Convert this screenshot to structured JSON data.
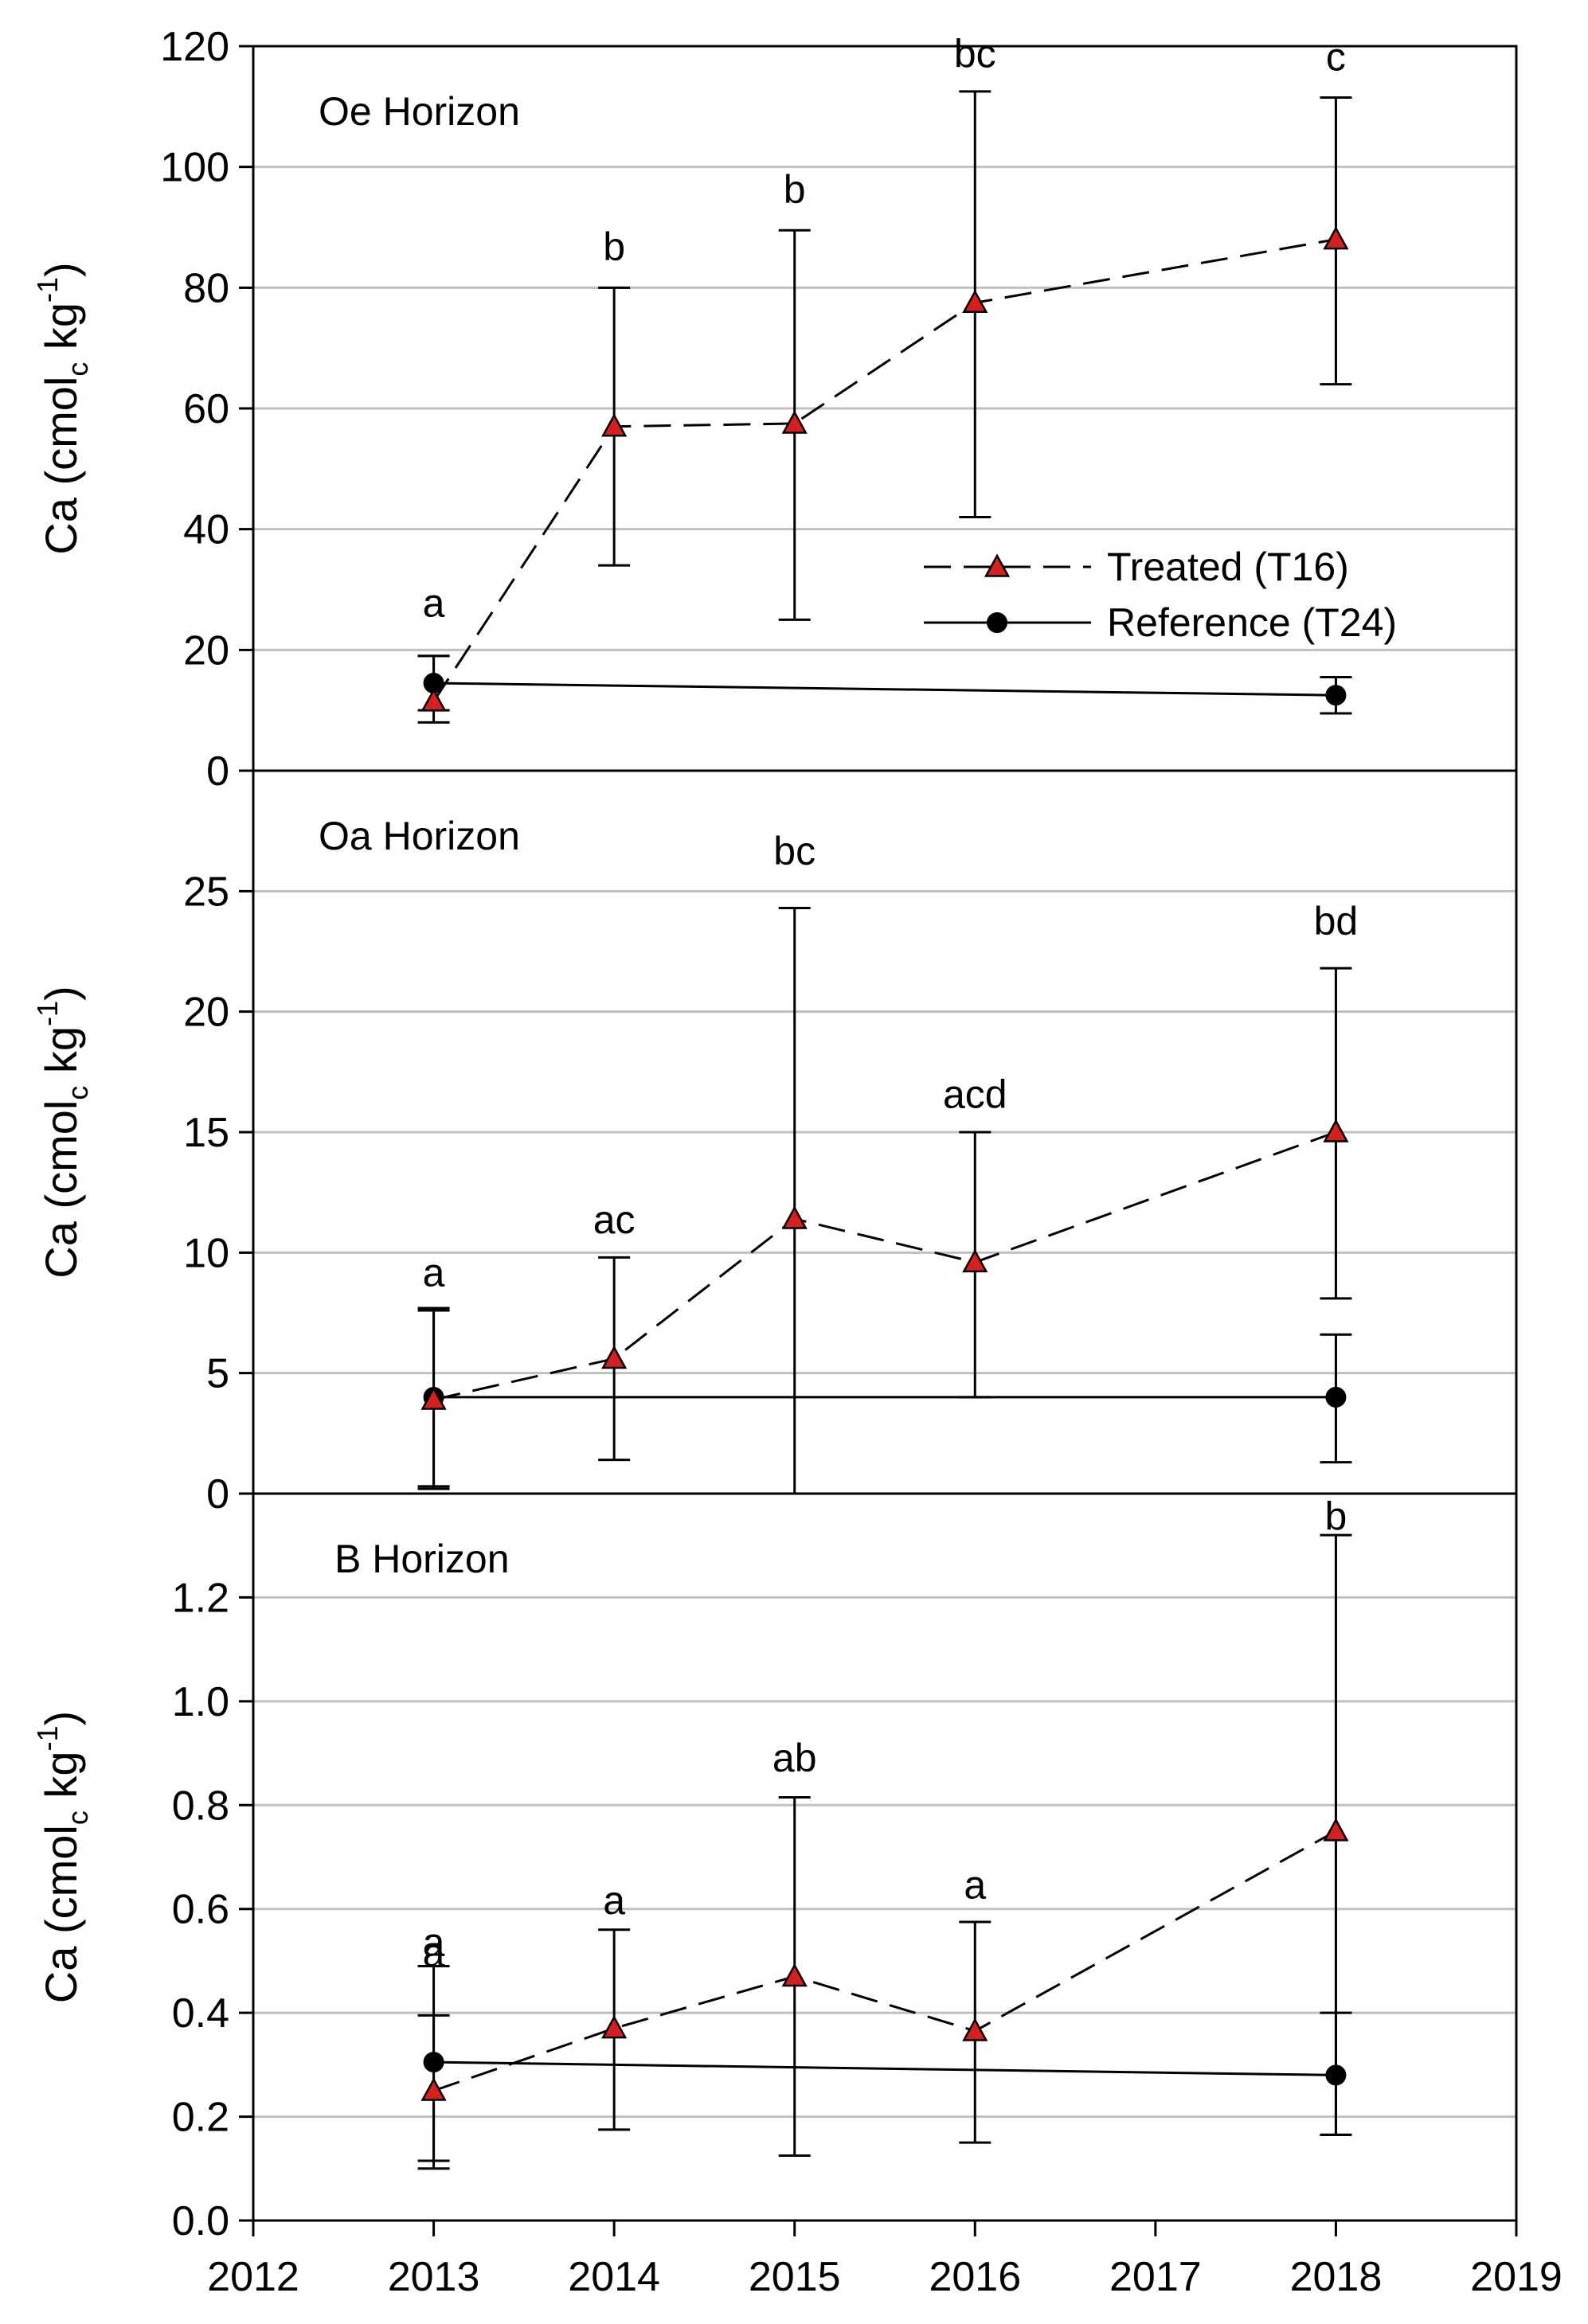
{
  "chart_data": [
    {
      "type": "line",
      "panel_label": "Oe Horizon",
      "y_axis_title": {
        "main": "Ca (cmol",
        "subscript": "c",
        "mid": " kg",
        "superscript": "-1",
        "end": ")"
      },
      "ylim": [
        0,
        120
      ],
      "y_ticks": [
        0,
        20,
        40,
        60,
        80,
        100,
        120
      ],
      "y_tick_labels": [
        "0",
        "20",
        "40",
        "60",
        "80",
        "100",
        "120"
      ],
      "grid": true,
      "series": [
        {
          "name": "Treated (T16)",
          "marker": "triangle",
          "line_style": "dashed",
          "color": "#d42020",
          "x": [
            2013,
            2014,
            2015,
            2016,
            2018
          ],
          "values": [
            11.5,
            57,
            57.5,
            77.5,
            88
          ],
          "err_high": [
            19,
            80,
            89.5,
            112.5,
            111.5
          ],
          "err_low": [
            8,
            34,
            25,
            42,
            64
          ]
        },
        {
          "name": "Reference (T24)",
          "marker": "circle",
          "line_style": "solid",
          "color": "#000000",
          "x": [
            2013,
            2018
          ],
          "values": [
            14.5,
            12.5
          ],
          "err_high": [
            19,
            15.5
          ],
          "err_low": [
            10,
            9.5
          ]
        }
      ],
      "significance_labels": [
        {
          "x": 2013,
          "y": 25.5,
          "text": "a"
        },
        {
          "x": 2014,
          "y": 84.5,
          "text": "b"
        },
        {
          "x": 2015,
          "y": 94,
          "text": "b"
        },
        {
          "x": 2016,
          "y": 116.5,
          "text": "bc"
        },
        {
          "x": 2018,
          "y": 116,
          "text": "c"
        }
      ]
    },
    {
      "type": "line",
      "panel_label": "Oa Horizon",
      "y_axis_title": {
        "main": "Ca (cmol",
        "subscript": "c",
        "mid": " kg",
        "superscript": "-1",
        "end": ")"
      },
      "ylim": [
        0,
        30
      ],
      "y_ticks": [
        0,
        5,
        10,
        15,
        20,
        25
      ],
      "y_tick_labels": [
        "0",
        "5",
        "10",
        "15",
        "20",
        "25"
      ],
      "grid": true,
      "series": [
        {
          "name": "Treated (T16)",
          "marker": "triangle",
          "line_style": "dashed",
          "color": "#d42020",
          "x": [
            2013,
            2014,
            2015,
            2016,
            2018
          ],
          "values": [
            3.9,
            5.6,
            11.4,
            9.6,
            15
          ],
          "err_high": [
            7.6,
            9.8,
            24.3,
            15,
            21.8
          ],
          "err_low": [
            0.2,
            1.4,
            0,
            4,
            8.1
          ]
        },
        {
          "name": "Reference (T24)",
          "marker": "circle",
          "line_style": "solid",
          "color": "#000000",
          "x": [
            2013,
            2018
          ],
          "values": [
            4,
            4
          ],
          "err_high": [
            7.7,
            6.6
          ],
          "err_low": [
            0.3,
            1.3
          ]
        }
      ],
      "significance_labels": [
        {
          "x": 2013,
          "y": 8.6,
          "text": "a"
        },
        {
          "x": 2014,
          "y": 10.8,
          "text": "ac"
        },
        {
          "x": 2015,
          "y": 26.1,
          "text": "bc"
        },
        {
          "x": 2016,
          "y": 16,
          "text": "acd"
        },
        {
          "x": 2018,
          "y": 23.2,
          "text": "bd"
        }
      ]
    },
    {
      "type": "line",
      "panel_label": "B Horizon",
      "y_axis_title": {
        "main": "Ca (cmol",
        "subscript": "c",
        "mid": " kg",
        "superscript": "-1",
        "end": ")"
      },
      "ylim": [
        0,
        1.4
      ],
      "y_ticks": [
        0,
        0.2,
        0.4,
        0.6,
        0.8,
        1.0,
        1.2
      ],
      "y_tick_labels": [
        "0.0",
        "0.2",
        "0.4",
        "0.6",
        "0.8",
        "1.0",
        "1.2"
      ],
      "grid": true,
      "series": [
        {
          "name": "Treated (T16)",
          "marker": "triangle",
          "line_style": "dashed",
          "color": "#d42020",
          "x": [
            2013,
            2014,
            2015,
            2016,
            2018
          ],
          "values": [
            0.25,
            0.37,
            0.47,
            0.365,
            0.75
          ],
          "err_high": [
            0.49,
            0.56,
            0.815,
            0.575,
            1.32
          ],
          "err_low": [
            0.1,
            0.175,
            0.125,
            0.15,
            0.165
          ]
        },
        {
          "name": "Reference (T24)",
          "marker": "circle",
          "line_style": "solid",
          "color": "#000000",
          "x": [
            2013,
            2018
          ],
          "values": [
            0.305,
            0.28
          ],
          "err_high": [
            0.395,
            0.4
          ],
          "err_low": [
            0.115,
            0.165
          ]
        }
      ],
      "significance_labels": [
        {
          "x": 2013,
          "y": 0.51,
          "text": "a"
        },
        {
          "x": 2013,
          "y": 0.49,
          "text": "a"
        },
        {
          "x": 2014,
          "y": 0.59,
          "text": "a"
        },
        {
          "x": 2015,
          "y": 0.865,
          "text": "ab"
        },
        {
          "x": 2016,
          "y": 0.62,
          "text": "a"
        },
        {
          "x": 2018,
          "y": 1.33,
          "text": "b"
        }
      ]
    }
  ],
  "x_axis": {
    "xlim": [
      2012,
      2019
    ],
    "ticks": [
      2012,
      2013,
      2014,
      2015,
      2016,
      2017,
      2018,
      2019
    ],
    "tick_labels": [
      "2012",
      "2013",
      "2014",
      "2015",
      "2016",
      "2017",
      "2018",
      "2019"
    ]
  },
  "legend": {
    "placement": "right, inside Oe Horizon panel",
    "items": [
      {
        "label": "Treated (T16)",
        "marker": "triangle",
        "line_style": "dashed",
        "color": "#d42020"
      },
      {
        "label": "Reference (T24)",
        "marker": "circle",
        "line_style": "solid",
        "color": "#000000"
      }
    ]
  },
  "colors": {
    "grid": "#c0c0c0",
    "treated_marker": "#d42020",
    "axis": "#000000"
  }
}
